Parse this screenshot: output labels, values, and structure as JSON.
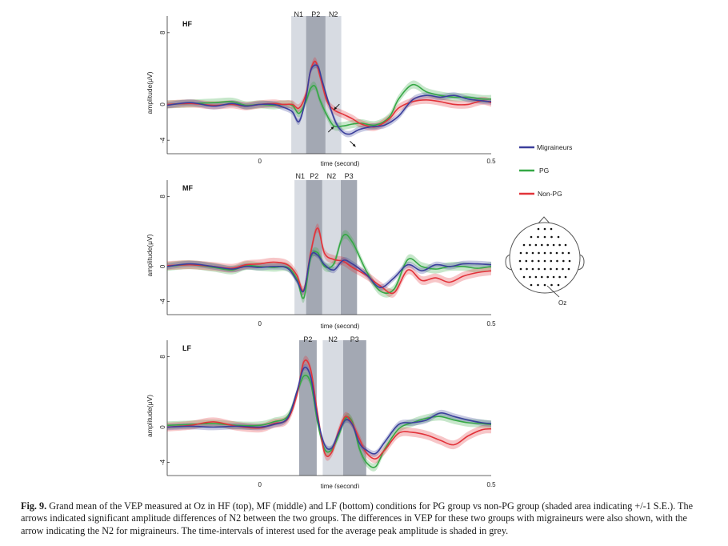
{
  "chart_data": [
    {
      "type": "line",
      "panel_label": "HF",
      "xlabel": "time (second)",
      "ylabel": "amplitude(μV)",
      "xlim": [
        -0.2,
        0.5
      ],
      "ylim": [
        -5.5,
        9.5
      ],
      "xticks": [
        {
          "v": 0,
          "label": "0"
        },
        {
          "v": 0.5,
          "label": "0.5"
        }
      ],
      "yticks": [
        {
          "v": -4,
          "label": "-4"
        },
        {
          "v": 0,
          "label": "0"
        },
        {
          "v": 8,
          "label": "8"
        }
      ],
      "windows": [
        {
          "label": "N1",
          "range": [
            0.068,
            0.1
          ],
          "shade": "light"
        },
        {
          "label": "P2",
          "range": [
            0.1,
            0.142
          ],
          "shade": "dark"
        },
        {
          "label": "N2",
          "range": [
            0.142,
            0.176
          ],
          "shade": "light"
        }
      ],
      "arrows": [
        {
          "x": 0.16,
          "y": -0.6,
          "dir": "up-right"
        },
        {
          "x": 0.148,
          "y": -3.1,
          "dir": "up-right"
        },
        {
          "x": 0.195,
          "y": -4.1,
          "dir": "down-right"
        }
      ],
      "series": [
        {
          "name": "Migraineurs",
          "color": "#3b3f9c",
          "band": 0.35,
          "x": [
            -0.2,
            -0.15,
            -0.1,
            -0.06,
            -0.03,
            0.0,
            0.03,
            0.05,
            0.07,
            0.085,
            0.1,
            0.11,
            0.125,
            0.135,
            0.15,
            0.165,
            0.18,
            0.195,
            0.215,
            0.24,
            0.27,
            0.3,
            0.33,
            0.36,
            0.39,
            0.42,
            0.45,
            0.48,
            0.5
          ],
          "y": [
            -0.1,
            0.2,
            -0.2,
            0.1,
            -0.2,
            0.0,
            0.0,
            -0.3,
            -0.8,
            -1.9,
            0.8,
            3.8,
            4.3,
            2.6,
            0.0,
            -2.1,
            -3.1,
            -3.3,
            -2.8,
            -2.5,
            -2.3,
            -1.3,
            0.5,
            1.0,
            0.8,
            1.0,
            0.6,
            0.4,
            0.3
          ]
        },
        {
          "name": "PG",
          "color": "#35a845",
          "band": 0.45,
          "x": [
            -0.2,
            -0.15,
            -0.1,
            -0.06,
            -0.03,
            0.0,
            0.03,
            0.05,
            0.07,
            0.085,
            0.1,
            0.11,
            0.12,
            0.13,
            0.145,
            0.16,
            0.18,
            0.2,
            0.22,
            0.25,
            0.28,
            0.3,
            0.33,
            0.36,
            0.39,
            0.42,
            0.45,
            0.48,
            0.5
          ],
          "y": [
            0.0,
            0.1,
            0.2,
            0.3,
            -0.1,
            0.0,
            -0.1,
            0.0,
            -0.1,
            -1.0,
            0.4,
            1.8,
            2.0,
            0.5,
            -1.2,
            -2.4,
            -2.4,
            -2.2,
            -2.1,
            -2.3,
            -1.4,
            0.6,
            2.2,
            1.4,
            1.0,
            0.8,
            0.8,
            0.6,
            0.6
          ]
        },
        {
          "name": "Non-PG",
          "color": "#e2333a",
          "band": 0.45,
          "x": [
            -0.2,
            -0.15,
            -0.1,
            -0.06,
            -0.03,
            0.0,
            0.03,
            0.05,
            0.07,
            0.085,
            0.1,
            0.11,
            0.12,
            0.13,
            0.145,
            0.16,
            0.18,
            0.2,
            0.22,
            0.25,
            0.28,
            0.3,
            0.33,
            0.36,
            0.39,
            0.42,
            0.45,
            0.48,
            0.5
          ],
          "y": [
            0.0,
            0.1,
            -0.1,
            0.0,
            -0.2,
            0.0,
            0.1,
            0.0,
            0.0,
            -0.4,
            1.2,
            3.8,
            4.8,
            3.2,
            0.4,
            -0.6,
            -1.1,
            -1.6,
            -2.2,
            -2.5,
            -1.6,
            -0.4,
            0.3,
            0.5,
            0.3,
            0.0,
            0.0,
            0.4,
            0.2
          ]
        }
      ]
    },
    {
      "type": "line",
      "panel_label": "MF",
      "xlabel": "time (second)",
      "ylabel": "amplitude(μV)",
      "xlim": [
        -0.2,
        0.5
      ],
      "ylim": [
        -5.5,
        9.5
      ],
      "xticks": [
        {
          "v": 0,
          "label": "0"
        },
        {
          "v": 0.5,
          "label": "0.5"
        }
      ],
      "yticks": [
        {
          "v": -4,
          "label": "-4"
        },
        {
          "v": 0,
          "label": "0"
        },
        {
          "v": 8,
          "label": "8"
        }
      ],
      "windows": [
        {
          "label": "N1",
          "range": [
            0.075,
            0.1
          ],
          "shade": "light"
        },
        {
          "label": "P2",
          "range": [
            0.1,
            0.135
          ],
          "shade": "dark"
        },
        {
          "label": "N2",
          "range": [
            0.135,
            0.175
          ],
          "shade": "light"
        },
        {
          "label": "P3",
          "range": [
            0.175,
            0.21
          ],
          "shade": "dark"
        }
      ],
      "arrows": [],
      "series": [
        {
          "name": "Migraineurs",
          "color": "#3b3f9c",
          "band": 0.35,
          "x": [
            -0.2,
            -0.15,
            -0.1,
            -0.06,
            -0.03,
            0.0,
            0.03,
            0.06,
            0.08,
            0.095,
            0.11,
            0.125,
            0.14,
            0.16,
            0.18,
            0.2,
            0.23,
            0.26,
            0.29,
            0.32,
            0.35,
            0.38,
            0.41,
            0.44,
            0.47,
            0.5
          ],
          "y": [
            0.0,
            0.3,
            0.0,
            -0.3,
            0.0,
            -0.1,
            0.0,
            -0.2,
            -1.6,
            -2.8,
            1.2,
            1.3,
            0.2,
            -0.4,
            0.7,
            0.3,
            -0.9,
            -2.4,
            -1.3,
            0.2,
            -0.5,
            0.2,
            0.0,
            0.3,
            0.3,
            0.2
          ]
        },
        {
          "name": "PG",
          "color": "#35a845",
          "band": 0.5,
          "x": [
            -0.2,
            -0.15,
            -0.1,
            -0.06,
            -0.03,
            0.0,
            0.03,
            0.06,
            0.08,
            0.095,
            0.11,
            0.125,
            0.14,
            0.16,
            0.18,
            0.2,
            0.23,
            0.26,
            0.29,
            0.32,
            0.35,
            0.38,
            0.41,
            0.44,
            0.47,
            0.5
          ],
          "y": [
            0.0,
            0.2,
            -0.1,
            -0.4,
            0.1,
            0.0,
            -0.1,
            -0.1,
            -1.4,
            -3.6,
            1.0,
            1.6,
            0.0,
            0.3,
            3.5,
            2.8,
            -0.5,
            -2.8,
            -2.6,
            0.8,
            0.0,
            -0.3,
            0.0,
            0.0,
            -0.2,
            0.0
          ]
        },
        {
          "name": "Non-PG",
          "color": "#e2333a",
          "band": 0.5,
          "x": [
            -0.2,
            -0.15,
            -0.1,
            -0.06,
            -0.03,
            0.0,
            0.03,
            0.06,
            0.08,
            0.095,
            0.11,
            0.125,
            0.14,
            0.16,
            0.18,
            0.2,
            0.23,
            0.26,
            0.29,
            0.32,
            0.35,
            0.38,
            0.41,
            0.44,
            0.47,
            0.5
          ],
          "y": [
            0.1,
            0.2,
            0.0,
            -0.2,
            0.2,
            0.3,
            0.5,
            0.2,
            -1.0,
            -2.7,
            1.6,
            4.4,
            1.5,
            0.8,
            0.6,
            -0.1,
            -1.0,
            -2.2,
            -3.0,
            -0.4,
            -1.6,
            -1.3,
            -1.8,
            -1.1,
            -0.7,
            -0.5
          ]
        }
      ]
    },
    {
      "type": "line",
      "panel_label": "LF",
      "xlabel": "time (second)",
      "ylabel": "amplitude(μV)",
      "xlim": [
        -0.2,
        0.5
      ],
      "ylim": [
        -5.5,
        9.5
      ],
      "xticks": [
        {
          "v": 0,
          "label": "0"
        },
        {
          "v": 0.5,
          "label": "0.5"
        }
      ],
      "yticks": [
        {
          "v": -4,
          "label": "-4"
        },
        {
          "v": 0,
          "label": "0"
        },
        {
          "v": 8,
          "label": "8"
        }
      ],
      "windows": [
        {
          "label": "P2",
          "range": [
            0.085,
            0.123
          ],
          "shade": "dark"
        },
        {
          "label": "N2",
          "range": [
            0.136,
            0.18
          ],
          "shade": "light"
        },
        {
          "label": "P3",
          "range": [
            0.18,
            0.23
          ],
          "shade": "dark"
        }
      ],
      "arrows": [],
      "series": [
        {
          "name": "Migraineurs",
          "color": "#3b3f9c",
          "band": 0.35,
          "x": [
            -0.2,
            -0.15,
            -0.1,
            -0.05,
            0.0,
            0.03,
            0.06,
            0.08,
            0.095,
            0.11,
            0.125,
            0.14,
            0.155,
            0.17,
            0.185,
            0.2,
            0.215,
            0.23,
            0.25,
            0.27,
            0.3,
            0.33,
            0.36,
            0.39,
            0.42,
            0.45,
            0.48,
            0.5
          ],
          "y": [
            0.0,
            0.1,
            0.0,
            0.1,
            0.0,
            0.3,
            1.0,
            4.0,
            6.7,
            5.7,
            1.0,
            -2.0,
            -2.4,
            -0.7,
            0.8,
            0.3,
            -1.8,
            -2.6,
            -3.0,
            -1.7,
            0.3,
            0.5,
            0.8,
            1.6,
            1.2,
            0.8,
            0.5,
            0.4
          ]
        },
        {
          "name": "PG",
          "color": "#35a845",
          "band": 0.45,
          "x": [
            -0.2,
            -0.15,
            -0.1,
            -0.05,
            0.0,
            0.03,
            0.06,
            0.08,
            0.095,
            0.11,
            0.125,
            0.14,
            0.155,
            0.17,
            0.185,
            0.2,
            0.215,
            0.23,
            0.25,
            0.27,
            0.3,
            0.33,
            0.36,
            0.39,
            0.42,
            0.45,
            0.48,
            0.5
          ],
          "y": [
            0.2,
            0.3,
            0.4,
            0.2,
            0.2,
            0.6,
            1.2,
            3.8,
            5.8,
            5.0,
            0.5,
            -2.5,
            -2.6,
            -1.0,
            1.0,
            0.6,
            -2.4,
            -4.0,
            -4.5,
            -2.5,
            -0.2,
            0.5,
            1.0,
            1.2,
            0.8,
            0.5,
            0.4,
            0.3
          ]
        },
        {
          "name": "Non-PG",
          "color": "#e2333a",
          "band": 0.5,
          "x": [
            -0.2,
            -0.15,
            -0.1,
            -0.05,
            0.0,
            0.03,
            0.06,
            0.08,
            0.095,
            0.11,
            0.125,
            0.14,
            0.155,
            0.17,
            0.185,
            0.2,
            0.215,
            0.23,
            0.25,
            0.27,
            0.3,
            0.33,
            0.36,
            0.39,
            0.42,
            0.45,
            0.48,
            0.5
          ],
          "y": [
            0.0,
            0.2,
            0.6,
            0.1,
            -0.1,
            0.4,
            0.9,
            3.6,
            7.4,
            6.5,
            1.5,
            -2.9,
            -2.9,
            -0.5,
            1.2,
            0.4,
            -1.3,
            -2.9,
            -3.6,
            -2.6,
            -0.7,
            -0.6,
            -0.9,
            -1.5,
            -2.0,
            -1.0,
            -0.3,
            -0.2
          ]
        }
      ]
    }
  ],
  "legend": {
    "placement": "right",
    "items": [
      {
        "label": "Migraineurs",
        "color": "#3b3f9c"
      },
      {
        "label": "PG",
        "color": "#35a845"
      },
      {
        "label": "Non-PG",
        "color": "#e2333a"
      }
    ]
  },
  "head_map": {
    "electrode_label": "Oz",
    "row_counts": [
      3,
      5,
      8,
      9,
      9,
      9,
      8,
      5
    ]
  },
  "caption": {
    "label": "Fig. 9.",
    "text": "Grand mean of the VEP measured at Oz in HF (top), MF (middle) and LF (bottom) conditions for PG group vs non-PG group (shaded area indicating +/-1 S.E.). The arrows indicated significant amplitude differences of N2 between the two groups. The differences in VEP for these two groups with migraineurs were also shown, with the arrow indicating the N2 for migraineurs. The time-intervals of interest used for the average peak amplitude is shaded in grey."
  }
}
